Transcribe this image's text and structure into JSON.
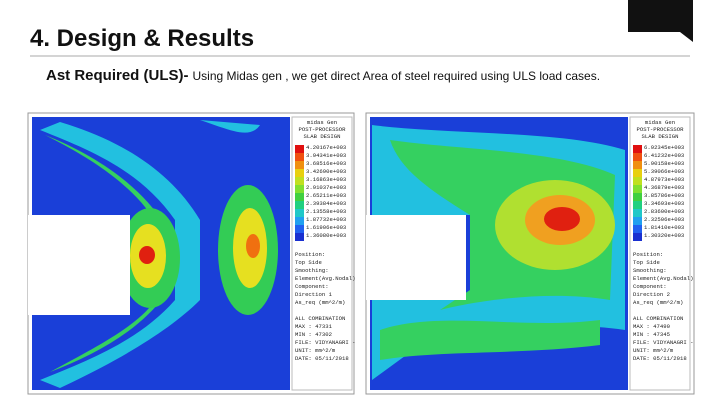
{
  "header": {
    "title": "4. Design & Results",
    "subtitle": "Ast Required (ULS)-",
    "description": "Using Midas gen , we get direct Area of steel required using ULS load cases."
  },
  "panels": [
    {
      "header": [
        "midas Gen",
        "POST-PROCESSOR",
        "SLAB DESIGN"
      ],
      "legend": [
        "4.20167e+003",
        "3.94341e+003",
        "3.68516e+003",
        "3.42690e+003",
        "3.16863e+003",
        "2.91037e+003",
        "2.65211e+003",
        "2.39384e+003",
        "2.13558e+003",
        "1.87732e+003",
        "1.61906e+003",
        "1.36080e+003"
      ],
      "info": [
        "Position:",
        "Top Side",
        "Smoothing:",
        "Element(Avg.Nodal)",
        "Component:",
        "Direction 1",
        "As_req (mm^2/m)",
        "",
        "ALL COMBINATION",
        "MAX : 47331",
        "MIN : 47302",
        "FILE: VIDYANAGRI -",
        "UNIT: mm^2/m",
        "DATE: 05/11/2018"
      ]
    },
    {
      "header": [
        "midas Gen",
        "POST-PROCESSOR",
        "SLAB DESIGN"
      ],
      "legend": [
        "6.92345e+003",
        "6.41232e+003",
        "5.90158e+003",
        "5.39066e+003",
        "4.87973e+003",
        "4.36879e+003",
        "3.85786e+003",
        "3.34693e+003",
        "2.83600e+003",
        "2.32506e+003",
        "1.81410e+003",
        "1.30320e+003"
      ],
      "info": [
        "Position:",
        "Top Side",
        "Smoothing:",
        "Element(Avg.Nodal)",
        "Component:",
        "Direction 2",
        "As_req (mm^2/m)",
        "",
        "ALL COMBINATION",
        "MAX : 47490",
        "MIN : 47345",
        "FILE: VIDYANAGRI -",
        "UNIT: mm^2/m",
        "DATE: 05/11/2018"
      ]
    }
  ]
}
